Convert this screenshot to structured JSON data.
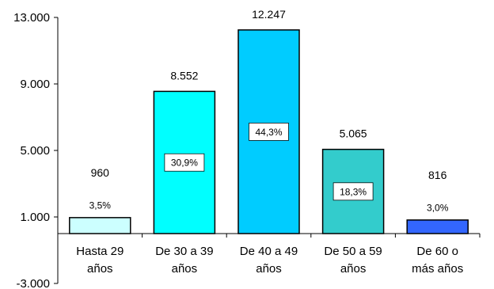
{
  "chart_data": {
    "type": "bar",
    "categories": [
      [
        "Hasta 29",
        "años"
      ],
      [
        "De 30 a 39",
        "años"
      ],
      [
        "De 40 a 49",
        "años"
      ],
      [
        "De 50 a 59",
        "años"
      ],
      [
        "De 60 o",
        "más años"
      ]
    ],
    "values": [
      960,
      8552,
      12247,
      5065,
      816
    ],
    "value_labels": [
      "960",
      "8.552",
      "12.247",
      "5.065",
      "816"
    ],
    "percent_labels": [
      "3,5%",
      "30,9%",
      "44,3%",
      "18,3%",
      "3,0%"
    ],
    "colors": [
      "#ccffff",
      "#00ffff",
      "#00ccff",
      "#33cccc",
      "#3366ff"
    ],
    "ylim": [
      -3000,
      13000
    ],
    "baseline": 0,
    "yticks": [
      {
        "value": 13000,
        "label": "13.000"
      },
      {
        "value": 9000,
        "label": "9.000"
      },
      {
        "value": 5000,
        "label": "5.000"
      },
      {
        "value": 1000,
        "label": "1.000"
      },
      {
        "value": -3000,
        "label": "-3.000"
      }
    ],
    "title": "",
    "xlabel": "",
    "ylabel": "",
    "grid": false,
    "legend": "none"
  }
}
